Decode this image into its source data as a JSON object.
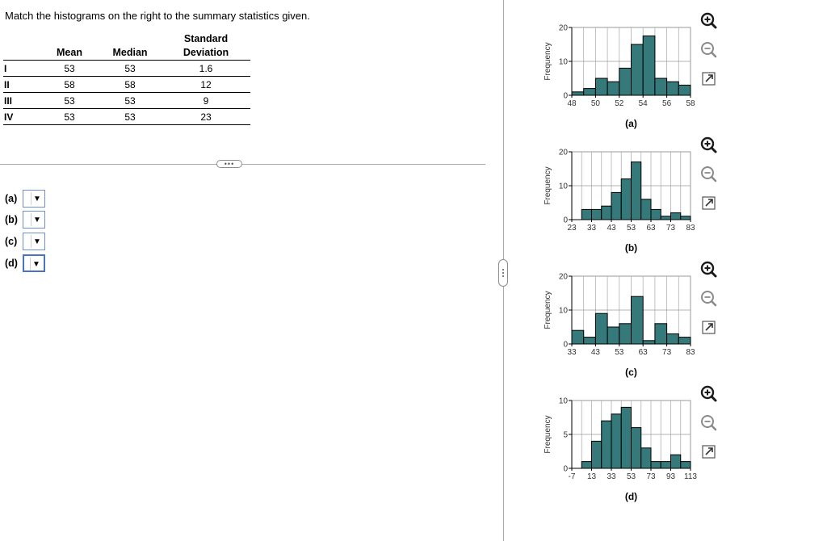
{
  "question": {
    "prompt": "Match the histograms on the right to the summary statistics given."
  },
  "stats_table": {
    "headers": {
      "mean": "Mean",
      "median": "Median",
      "sd_line1": "Standard",
      "sd_line2": "Deviation"
    },
    "rows": [
      {
        "label": "I",
        "mean": "53",
        "median": "53",
        "sd": "1.6"
      },
      {
        "label": "II",
        "mean": "58",
        "median": "58",
        "sd": "12"
      },
      {
        "label": "III",
        "mean": "53",
        "median": "53",
        "sd": "9"
      },
      {
        "label": "IV",
        "mean": "53",
        "median": "53",
        "sd": "23"
      }
    ]
  },
  "answers": [
    {
      "label": "(a)",
      "selected": ""
    },
    {
      "label": "(b)",
      "selected": ""
    },
    {
      "label": "(c)",
      "selected": ""
    },
    {
      "label": "(d)",
      "selected": ""
    }
  ],
  "bar_color": "#35797a",
  "chart_data": [
    {
      "type": "bar",
      "title": "(a)",
      "ylabel": "Frequency",
      "ylim": [
        0,
        20
      ],
      "yticks": [
        0,
        10,
        20
      ],
      "xticks": [
        "48",
        "50",
        "52",
        "54",
        "56",
        "58"
      ],
      "values": [
        1,
        2,
        5,
        4,
        8,
        15,
        17.5,
        5,
        4,
        3
      ]
    },
    {
      "type": "bar",
      "title": "(b)",
      "ylabel": "Frequency",
      "ylim": [
        0,
        20
      ],
      "yticks": [
        0,
        10,
        20
      ],
      "xticks": [
        "23",
        "33",
        "43",
        "53",
        "63",
        "73",
        "83"
      ],
      "values": [
        0,
        3,
        3,
        4,
        8,
        12,
        17,
        6,
        3,
        1,
        2,
        1
      ]
    },
    {
      "type": "bar",
      "title": "(c)",
      "ylabel": "Frequency",
      "ylim": [
        0,
        20
      ],
      "yticks": [
        0,
        10,
        20
      ],
      "xticks": [
        "33",
        "43",
        "53",
        "63",
        "73",
        "83"
      ],
      "values": [
        4,
        2,
        9,
        5,
        6,
        14,
        1,
        6,
        3,
        2
      ]
    },
    {
      "type": "bar",
      "title": "(d)",
      "ylabel": "Frequency",
      "ylim": [
        0,
        10
      ],
      "yticks": [
        0,
        5,
        10
      ],
      "xticks": [
        "-7",
        "13",
        "33",
        "53",
        "73",
        "93",
        "113"
      ],
      "values": [
        0,
        1,
        4,
        7,
        8,
        9,
        6,
        3,
        1,
        1,
        2,
        1
      ]
    }
  ]
}
